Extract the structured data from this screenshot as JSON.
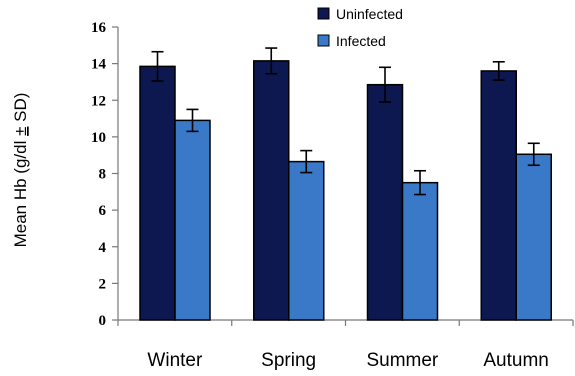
{
  "chart_data": {
    "type": "bar",
    "categories": [
      "Winter",
      "Spring",
      "Summer",
      "Autumn"
    ],
    "series": [
      {
        "name": "Uninfected",
        "values": [
          13.85,
          14.15,
          12.85,
          13.6
        ],
        "errors": [
          0.8,
          0.7,
          0.95,
          0.5
        ],
        "color": "#0d1850"
      },
      {
        "name": "Infected",
        "values": [
          10.9,
          8.65,
          7.5,
          9.05
        ],
        "errors": [
          0.6,
          0.6,
          0.65,
          0.6
        ],
        "color": "#3a78c8"
      }
    ],
    "ylabel_main": "Mean Hb (g/dl ",
    "ylabel_pm": "±",
    "ylabel_tail": " SD)",
    "ylim": [
      0,
      16
    ],
    "yticks": [
      "0",
      "2",
      "4",
      "6",
      "8",
      "10",
      "12",
      "14",
      "16"
    ],
    "grid": false,
    "legend_position": "top-center"
  }
}
